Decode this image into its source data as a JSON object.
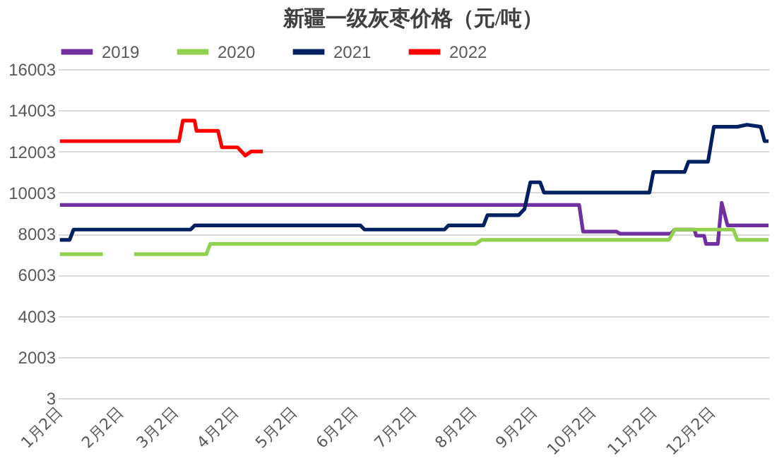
{
  "chart_data": {
    "type": "line",
    "title": "新疆一级灰枣价格（元/吨）",
    "legend": "top",
    "grid": "y",
    "line_style": "solid",
    "marker": "none",
    "xlim": [
      "--01-01",
      "--12-31"
    ],
    "xticks": [
      {
        "value": "--01-02",
        "label": "1月2日"
      },
      {
        "value": "--02-02",
        "label": "2月2日"
      },
      {
        "value": "--03-02",
        "label": "3月2日"
      },
      {
        "value": "--04-02",
        "label": "4月2日"
      },
      {
        "value": "--05-02",
        "label": "5月2日"
      },
      {
        "value": "--06-02",
        "label": "6月2日"
      },
      {
        "value": "--07-02",
        "label": "7月2日"
      },
      {
        "value": "--08-02",
        "label": "8月2日"
      },
      {
        "value": "--09-02",
        "label": "9月2日"
      },
      {
        "value": "--10-02",
        "label": "10月2日"
      },
      {
        "value": "--11-02",
        "label": "11月2日"
      },
      {
        "value": "--12-02",
        "label": "12月2日"
      }
    ],
    "ylim": [
      3,
      16003
    ],
    "yticks": [
      3,
      2003,
      4003,
      6003,
      8003,
      10003,
      12003,
      14003,
      16003
    ],
    "series": [
      {
        "name": "2019",
        "color": "#7030a0",
        "x": [
          "--01-02",
          "--09-25",
          "--09-27",
          "--10-14",
          "--10-16",
          "--11-11",
          "--11-13",
          "--11-23",
          "--11-24",
          "--11-28",
          "--11-29",
          "--12-05",
          "--12-07",
          "--12-10",
          "--12-31"
        ],
        "values": [
          9400,
          9400,
          8100,
          8100,
          8000,
          8000,
          8200,
          8200,
          7900,
          7900,
          7500,
          7500,
          9500,
          8400,
          8400
        ]
      },
      {
        "name": "2020",
        "color": "#92d050",
        "x": [
          "--01-02",
          "--01-24",
          "--02-01",
          "--02-09",
          "--03-18",
          "--03-20",
          "--08-03",
          "--08-06",
          "--11-10",
          "--11-13",
          "--12-13",
          "--12-15",
          "--12-31"
        ],
        "values": [
          7000,
          7000,
          null,
          7000,
          7000,
          7500,
          7500,
          7700,
          7700,
          8200,
          8200,
          7700,
          7700
        ]
      },
      {
        "name": "2021",
        "color": "#002060",
        "x": [
          "--01-02",
          "--01-07",
          "--01-09",
          "--03-10",
          "--03-12",
          "--06-05",
          "--06-07",
          "--07-18",
          "--07-20",
          "--08-07",
          "--08-09",
          "--08-25",
          "--08-28",
          "--08-31",
          "--09-05",
          "--09-07",
          "--10-31",
          "--11-02",
          "--11-18",
          "--11-20",
          "--11-30",
          "--12-03",
          "--12-15",
          "--12-20",
          "--12-27",
          "--12-29",
          "--12-31"
        ],
        "values": [
          7700,
          7700,
          8200,
          8200,
          8400,
          8400,
          8200,
          8200,
          8400,
          8400,
          8900,
          8900,
          9200,
          10500,
          10500,
          10000,
          10000,
          11000,
          11000,
          11500,
          11500,
          13200,
          13200,
          13300,
          13200,
          12500,
          12500
        ]
      },
      {
        "name": "2022",
        "color": "#ff0000",
        "x": [
          "--01-02",
          "--03-04",
          "--03-06",
          "--03-12",
          "--03-13",
          "--03-24",
          "--03-26",
          "--04-03",
          "--04-07",
          "--04-10",
          "--04-16"
        ],
        "values": [
          12500,
          12500,
          13500,
          13500,
          13000,
          13000,
          12200,
          12200,
          11800,
          12000,
          12000
        ]
      }
    ]
  }
}
